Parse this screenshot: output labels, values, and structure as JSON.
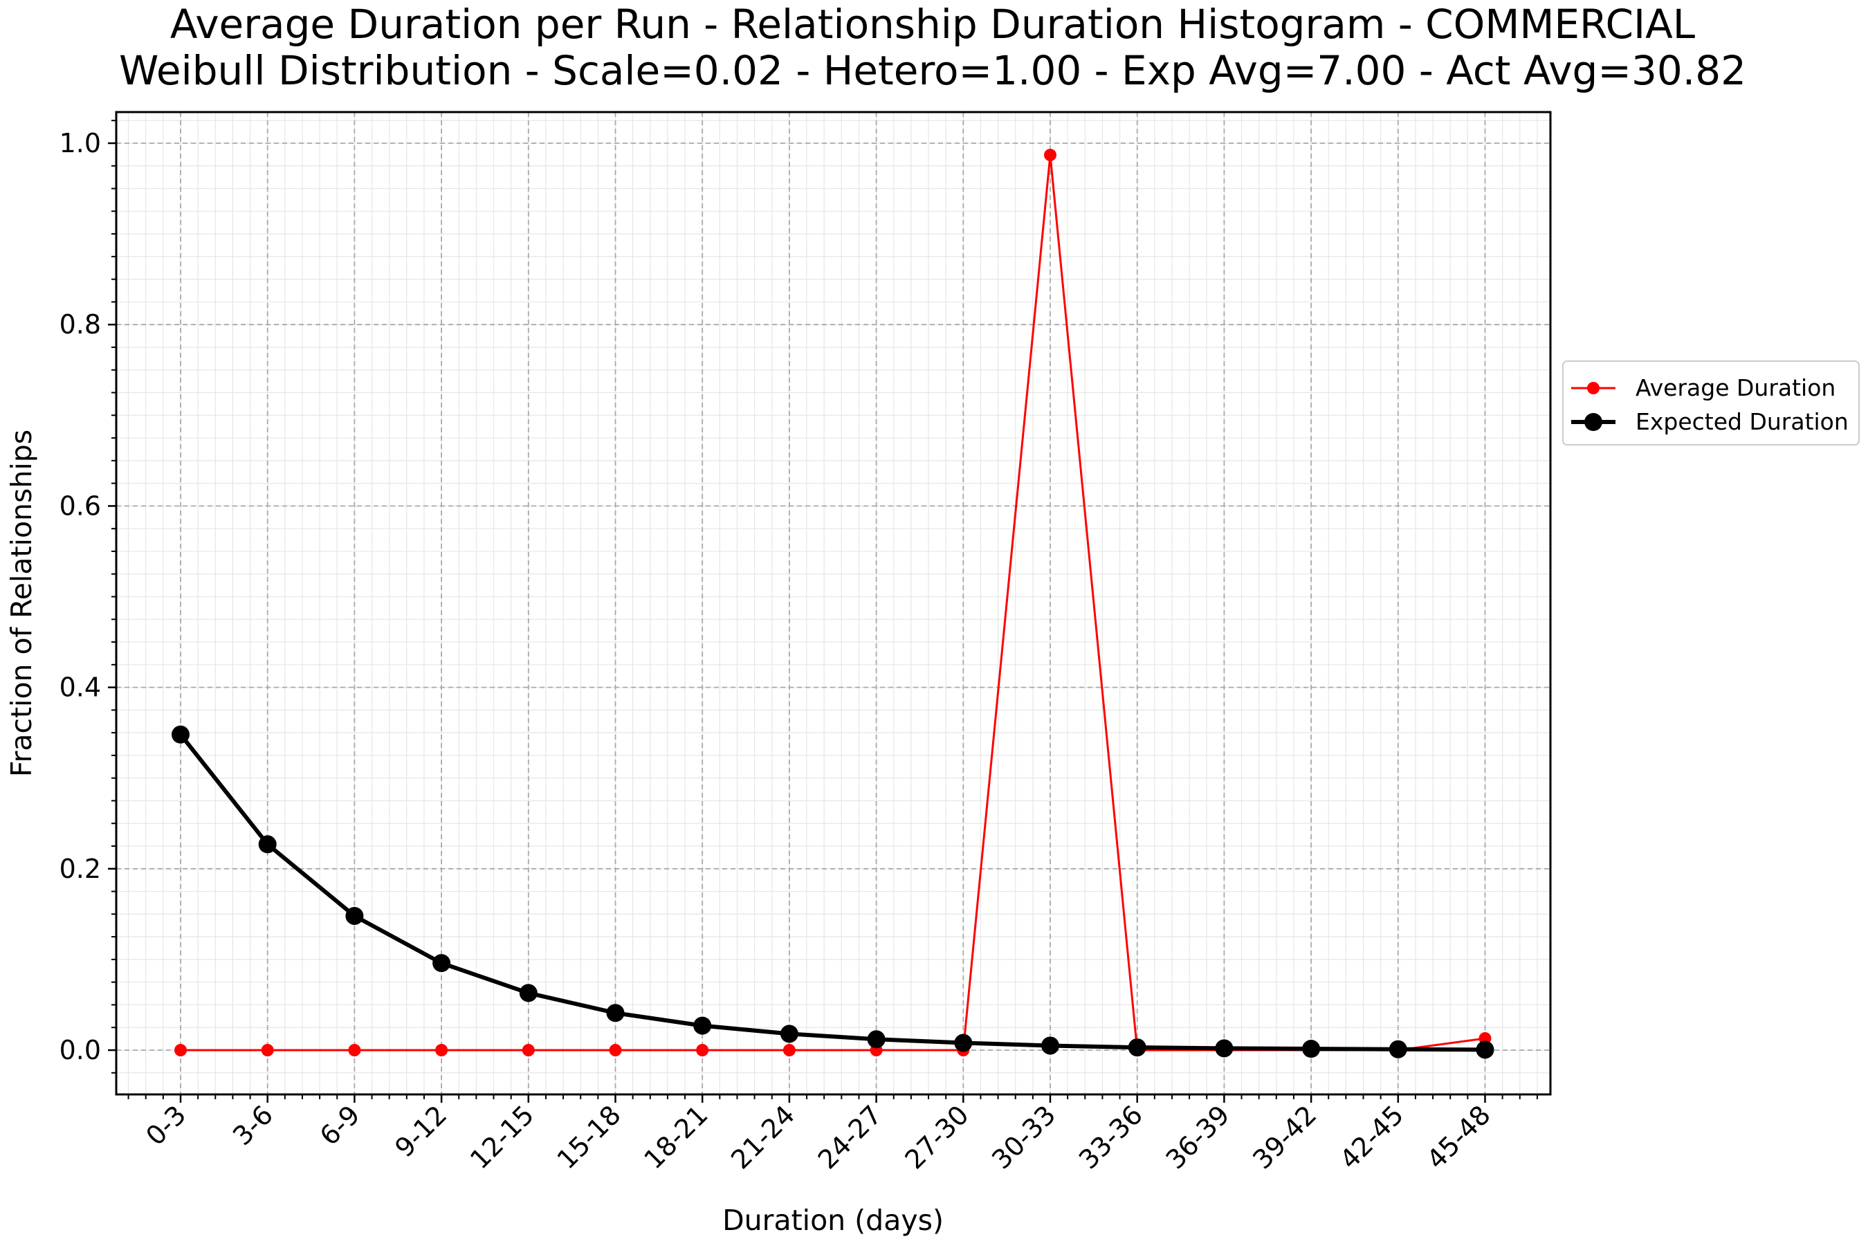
{
  "chart_data": {
    "type": "line",
    "title": "Average Duration per Run - Relationship Duration Histogram - COMMERCIAL",
    "subtitle": "Weibull Distribution - Scale=0.02 - Hetero=1.00 - Exp Avg=7.00 - Act Avg=30.82",
    "xlabel": "Duration (days)",
    "ylabel": "Fraction of Relationships",
    "categories": [
      "0-3",
      "3-6",
      "6-9",
      "9-12",
      "12-15",
      "15-18",
      "18-21",
      "21-24",
      "24-27",
      "27-30",
      "30-33",
      "33-36",
      "36-39",
      "39-42",
      "42-45",
      "45-48"
    ],
    "ylim": [
      -0.05,
      1.035
    ],
    "yticks": [
      0.0,
      0.2,
      0.4,
      0.6,
      0.8,
      1.0
    ],
    "ytick_labels": [
      "0.0",
      "0.2",
      "0.4",
      "0.6",
      "0.8",
      "1.0"
    ],
    "grid": true,
    "minor_grid": true,
    "legend_position": "right, outside plot",
    "series": [
      {
        "name": "Average Duration",
        "color": "#ff0000",
        "marker": "dot-small",
        "values": [
          0.0,
          0.0,
          0.0,
          0.0,
          0.0,
          0.0,
          0.0,
          0.0,
          0.0,
          0.0,
          0.987,
          0.0,
          0.0,
          0.0,
          0.0,
          0.013
        ]
      },
      {
        "name": "Expected Duration",
        "color": "#000000",
        "marker": "dot-large",
        "values": [
          0.348,
          0.227,
          0.148,
          0.096,
          0.063,
          0.041,
          0.027,
          0.018,
          0.012,
          0.008,
          0.005,
          0.003,
          0.002,
          0.0015,
          0.001,
          0.0005
        ]
      }
    ]
  }
}
